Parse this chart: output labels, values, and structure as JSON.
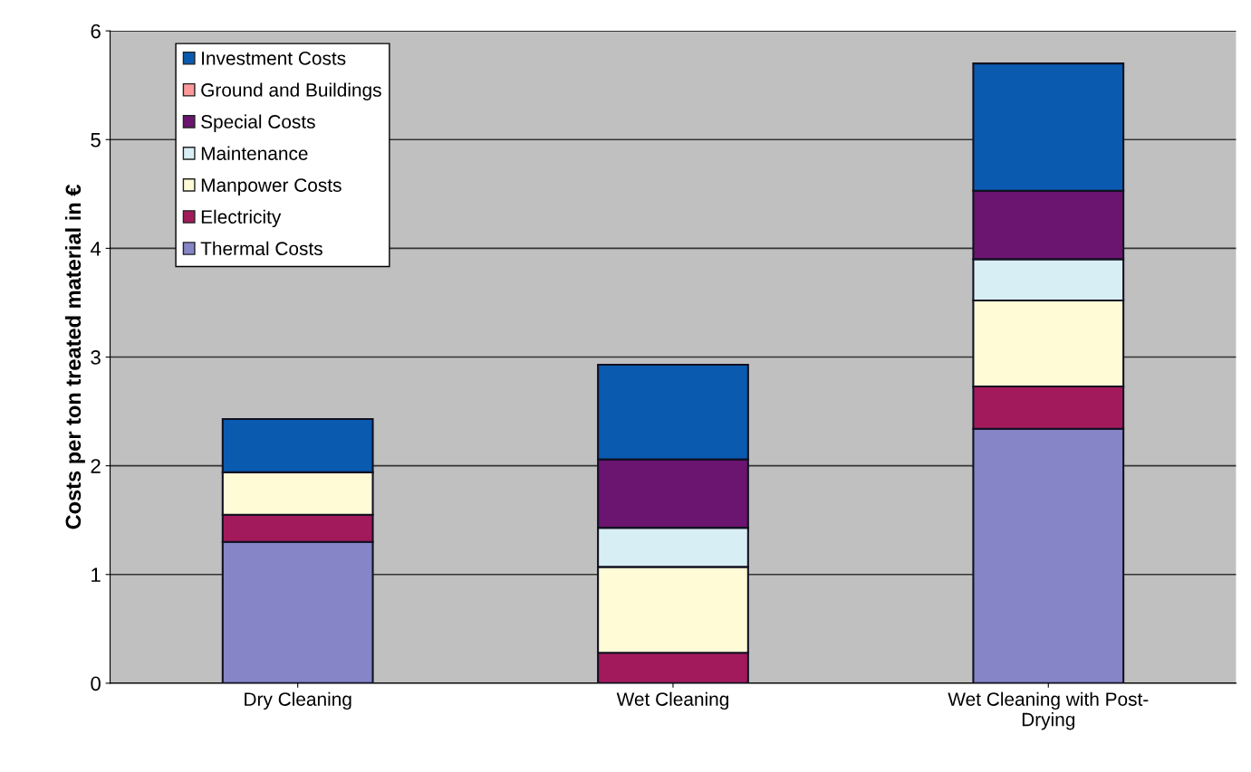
{
  "chart_data": {
    "type": "bar",
    "stacked": true,
    "ylabel": "Costs per ton treated material in €",
    "categories": [
      "Dry Cleaning",
      "Wet Cleaning",
      "Wet Cleaning with Post-\nDrying"
    ],
    "series": [
      {
        "name": "Thermal Costs",
        "color": "#8585c8",
        "values": [
          1.3,
          0,
          2.34
        ]
      },
      {
        "name": "Electricity",
        "color": "#a31a5c",
        "values": [
          0.25,
          0.28,
          0.39
        ]
      },
      {
        "name": "Manpower Costs",
        "color": "#fffbd6",
        "values": [
          0.39,
          0.79,
          0.79
        ]
      },
      {
        "name": "Maintenance",
        "color": "#d8eef5",
        "values": [
          0,
          0.36,
          0.38
        ]
      },
      {
        "name": "Special Costs",
        "color": "#6b1470",
        "values": [
          0,
          0.63,
          0.63
        ]
      },
      {
        "name": "Ground and Buildings",
        "color": "#ff9999",
        "values": [
          0,
          0,
          0
        ]
      },
      {
        "name": "Investment Costs",
        "color": "#0a5ab0",
        "values": [
          0.49,
          0.87,
          1.17
        ]
      }
    ],
    "ylim": [
      0,
      6
    ],
    "yticks": [
      0,
      1,
      2,
      3,
      4,
      5,
      6
    ],
    "grid": "y",
    "legend": "top left"
  }
}
